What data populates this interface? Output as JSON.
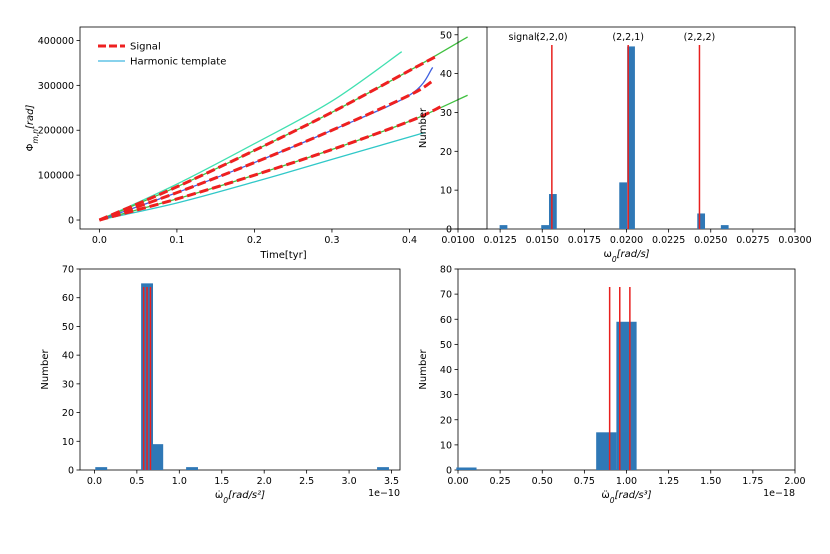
{
  "chart_data": [
    {
      "type": "line",
      "xlabel": "Time[tyr]",
      "ylabel": "Φm,n[rad]",
      "ylabel_main": "Φ",
      "ylabel_sub": "m,n",
      "ylabel_unit": "[rad]",
      "xlim": [
        -0.025,
        0.5
      ],
      "ylim": [
        -20000,
        430000
      ],
      "xticks": [
        "0.0",
        "0.1",
        "0.2",
        "0.3",
        "0.4"
      ],
      "yticks": [
        "0",
        "100000",
        "200000",
        "300000",
        "400000"
      ],
      "legend": {
        "placement": "top-left",
        "entries": [
          "Signal",
          "Harmonic template"
        ]
      },
      "series": [
        {
          "name": "Harmonic template",
          "color": "#40e0b0",
          "x": [
            0,
            0.1,
            0.2,
            0.3,
            0.39
          ],
          "y": [
            0,
            80000,
            170000,
            265000,
            375000
          ]
        },
        {
          "color": "#30c8c8",
          "x": [
            0,
            0.1,
            0.2,
            0.3,
            0.42
          ],
          "y": [
            0,
            38000,
            85000,
            135000,
            195000
          ]
        },
        {
          "color": "#40c040",
          "x": [
            0,
            0.1,
            0.2,
            0.3,
            0.4,
            0.475
          ],
          "y": [
            0,
            74000,
            155000,
            240000,
            333000,
            408000
          ]
        },
        {
          "color": "#40c040",
          "x": [
            0,
            0.1,
            0.2,
            0.3,
            0.4,
            0.475
          ],
          "y": [
            0,
            47000,
            100000,
            157000,
            220000,
            278000
          ]
        },
        {
          "color": "#4060e0",
          "x": [
            0,
            0.1,
            0.2,
            0.3,
            0.4,
            0.43
          ],
          "y": [
            0,
            61000,
            128000,
            200000,
            278000,
            340000
          ]
        },
        {
          "name": "Signal",
          "color": "#ee2020",
          "x": [
            0,
            0.1,
            0.2,
            0.3,
            0.4,
            0.435
          ],
          "y": [
            0,
            74000,
            155000,
            240000,
            333000,
            365000
          ]
        },
        {
          "color": "#ee2020",
          "x": [
            0,
            0.1,
            0.2,
            0.3,
            0.4,
            0.43
          ],
          "y": [
            0,
            61000,
            128000,
            200000,
            278000,
            310000
          ]
        },
        {
          "color": "#ee2020",
          "x": [
            0,
            0.1,
            0.2,
            0.3,
            0.4,
            0.44
          ],
          "y": [
            0,
            47000,
            100000,
            157000,
            220000,
            252000
          ]
        }
      ]
    },
    {
      "type": "bar",
      "xlabel": "ω0[rad/s]",
      "xlabel_main": "ω",
      "xlabel_sub": "0",
      "xlabel_unit": "[rad/s]",
      "ylabel": "Number",
      "xlim": [
        0.01,
        0.03
      ],
      "ylim": [
        0,
        52
      ],
      "xticks": [
        "0.0100",
        "0.0125",
        "0.0150",
        "0.0175",
        "0.0200",
        "0.0225",
        "0.0250",
        "0.0275",
        "0.0300"
      ],
      "yticks": [
        "0",
        "10",
        "20",
        "30",
        "40",
        "50"
      ],
      "bars": [
        {
          "x": 0.0127,
          "value": 1
        },
        {
          "x": 0.01517,
          "value": 1
        },
        {
          "x": 0.01563,
          "value": 9
        },
        {
          "x": 0.0198,
          "value": 12
        },
        {
          "x": 0.02027,
          "value": 47
        },
        {
          "x": 0.02443,
          "value": 4
        },
        {
          "x": 0.02583,
          "value": 1
        }
      ],
      "bar_width": 0.00046,
      "vlines": [
        {
          "x": 0.01557,
          "label": "(2,2,0)"
        },
        {
          "x": 0.0201,
          "label": "(2,2,1)"
        },
        {
          "x": 0.02433,
          "label": "(2,2,2)"
        }
      ],
      "annotation_prefix": "signal:"
    },
    {
      "type": "bar",
      "xlabel": "ω̇0[rad/s²]",
      "xlabel_main": "ω̇",
      "xlabel_sub": "0",
      "xlabel_unit": "[rad/s²]",
      "ylabel": "Number",
      "offset_text": "1e−10",
      "xlim": [
        -0.17,
        3.6
      ],
      "ylim": [
        0,
        70
      ],
      "xticks": [
        "0.0",
        "0.5",
        "1.0",
        "1.5",
        "2.0",
        "2.5",
        "3.0",
        "3.5"
      ],
      "yticks": [
        "0",
        "10",
        "20",
        "30",
        "40",
        "50",
        "60",
        "70"
      ],
      "bars": [
        {
          "x": 0.08,
          "value": 1
        },
        {
          "x": 0.62,
          "value": 65
        },
        {
          "x": 0.74,
          "value": 9
        },
        {
          "x": 1.15,
          "value": 1
        },
        {
          "x": 3.4,
          "value": 1
        }
      ],
      "bar_width": 0.14,
      "vlines": [
        {
          "x": 0.58
        },
        {
          "x": 0.62
        },
        {
          "x": 0.66
        }
      ]
    },
    {
      "type": "bar",
      "xlabel": "ω̈0[rad/s³]",
      "xlabel_main": "ω̈",
      "xlabel_sub": "0",
      "xlabel_unit": "[rad/s³]",
      "ylabel": "Number",
      "offset_text": "1e−18",
      "xlim": [
        0,
        2
      ],
      "ylim": [
        0,
        80
      ],
      "xticks": [
        "0.00",
        "0.25",
        "0.50",
        "0.75",
        "1.00",
        "1.25",
        "1.50",
        "1.75",
        "2.00"
      ],
      "yticks": [
        "0",
        "10",
        "20",
        "30",
        "40",
        "50",
        "60",
        "70",
        "80"
      ],
      "bars": [
        {
          "x": 0.05,
          "value": 1
        },
        {
          "x": 0.88,
          "value": 15
        },
        {
          "x": 1.0,
          "value": 59
        }
      ],
      "bar_width": 0.12,
      "vlines": [
        {
          "x": 0.9
        },
        {
          "x": 0.96
        },
        {
          "x": 1.02
        }
      ]
    }
  ],
  "colors": {
    "bar": "#2f78b6",
    "vline": "#e8201e",
    "axis": "#000000"
  }
}
